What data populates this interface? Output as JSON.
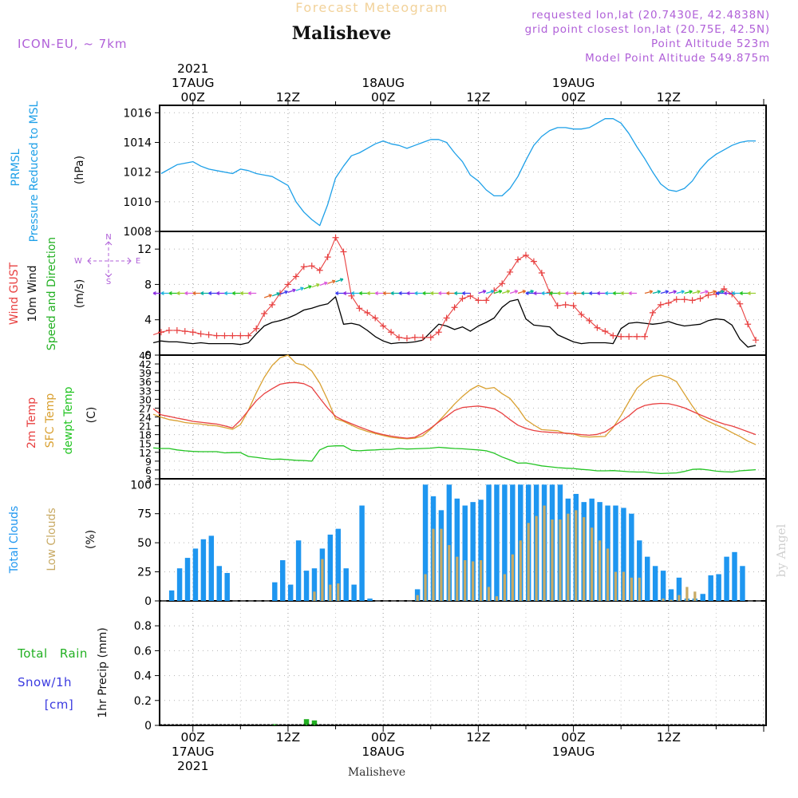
{
  "header": {
    "title": "Forecast Meteogram",
    "location": "Malisheve",
    "model": "ICON-EU, ~ 7km",
    "requested": "requested lon,lat (20.7430E, 42.4838N)",
    "gridpoint": "grid point closest lon,lat (20.75E, 42.5N)",
    "altitude": "Point Altitude 523m",
    "model_altitude": "Model Point Altitude 549.875m",
    "footer": "Malisheve",
    "watermark": "by Angel"
  },
  "time_axis": {
    "top_labels": [
      {
        "t": 0,
        "lines": [
          "2021",
          "17AUG",
          "00Z"
        ]
      },
      {
        "t": 12,
        "lines": [
          "12Z"
        ]
      },
      {
        "t": 24,
        "lines": [
          "18AUG",
          "00Z"
        ]
      },
      {
        "t": 36,
        "lines": [
          "12Z"
        ]
      },
      {
        "t": 48,
        "lines": [
          "19AUG",
          "00Z"
        ]
      },
      {
        "t": 60,
        "lines": [
          "12Z"
        ]
      }
    ],
    "bottom_labels": [
      {
        "t": 0,
        "lines": [
          "00Z",
          "17AUG",
          "2021"
        ]
      },
      {
        "t": 12,
        "lines": [
          "12Z"
        ]
      },
      {
        "t": 24,
        "lines": [
          "00Z",
          "18AUG"
        ]
      },
      {
        "t": 36,
        "lines": [
          "12Z"
        ]
      },
      {
        "t": 48,
        "lines": [
          "00Z",
          "19AUG"
        ]
      },
      {
        "t": 60,
        "lines": [
          "12Z"
        ]
      }
    ]
  },
  "panels": {
    "pressure": {
      "label": "PRMSL",
      "label2": "Pressure Reduced to MSL",
      "unit": "(hPa)"
    },
    "wind": {
      "label_gust": "Wind GUST",
      "label_wind": "10m Wind",
      "label_dir": "Speed and Direction",
      "unit": "(m/s)",
      "compass": [
        "N",
        "S",
        "W",
        "E"
      ]
    },
    "temp": {
      "label_2m": "2m Temp",
      "label_sfc": "SFC Temp",
      "label_dew": "dewpt Temp",
      "unit": "(C)"
    },
    "clouds": {
      "label_total": "Total Clouds",
      "label_low": "Low Clouds",
      "unit": "(%)"
    },
    "precip": {
      "label_rain": "Total Rain",
      "label_snow": "Snow/1h",
      "label_snow_unit": "[cm]",
      "label_axis": "1hr Precip (mm)"
    }
  },
  "colors": {
    "pressure": "#1ea0e8",
    "gust": "#e84040",
    "wind": "#000000",
    "temp2m": "#e84040",
    "sfc": "#d9a030",
    "dewpt": "#22c422",
    "total_clouds": "#1e96f0",
    "low_clouds": "#c8aa64",
    "rain": "#22b022",
    "snow": "#3a3ae0",
    "purple": "#b060d8",
    "title_gold": "#f2d29a",
    "watermark": "#d0d0d0"
  },
  "chart_data": [
    {
      "type": "line",
      "title": "PRMSL",
      "ylabel": "(hPa)",
      "ylim": [
        1008,
        1016.5
      ],
      "yticks": [
        1008,
        1010,
        1012,
        1014,
        1016
      ],
      "x": [
        -4,
        -2,
        -1,
        0,
        1,
        2,
        3,
        5,
        6,
        7,
        8,
        9,
        10,
        11,
        12,
        13,
        14,
        15,
        16,
        17,
        18,
        19,
        20,
        21,
        22,
        23,
        24,
        25,
        26,
        27,
        28,
        29,
        30,
        31,
        32,
        33,
        34,
        35,
        36,
        37,
        38,
        39,
        40,
        41,
        42,
        43,
        44,
        45,
        46,
        47,
        48,
        49,
        50,
        51,
        52,
        53,
        54,
        55,
        56,
        57,
        58,
        59,
        60,
        61,
        62,
        63,
        64,
        65,
        66,
        67,
        68,
        69,
        70,
        71
      ],
      "series": [
        {
          "name": "PRMSL",
          "values": [
            1011.9,
            1012.5,
            1012.6,
            1012.7,
            1012.4,
            1012.2,
            1012.1,
            1011.9,
            1012.2,
            1012.1,
            1011.9,
            1011.8,
            1011.7,
            1011.4,
            1011.1,
            1010.0,
            1009.3,
            1008.8,
            1008.4,
            1009.8,
            1011.6,
            1012.4,
            1013.1,
            1013.3,
            1013.6,
            1013.9,
            1014.1,
            1013.9,
            1013.8,
            1013.6,
            1013.8,
            1014.0,
            1014.2,
            1014.2,
            1014.0,
            1013.3,
            1012.7,
            1011.8,
            1011.4,
            1010.8,
            1010.4,
            1010.4,
            1010.9,
            1011.7,
            1012.8,
            1013.8,
            1014.4,
            1014.8,
            1015.0,
            1015.0,
            1014.9,
            1014.9,
            1015.0,
            1015.3,
            1015.6,
            1015.6,
            1015.3,
            1014.6,
            1013.7,
            1012.9,
            1012.0,
            1011.2,
            1010.8,
            1010.7,
            1010.9,
            1011.4,
            1012.2,
            1012.8,
            1013.2,
            1013.5,
            1013.8,
            1014.0,
            1014.1,
            1014.1
          ]
        }
      ]
    },
    {
      "type": "line",
      "title": "Wind",
      "ylabel": "(m/s)",
      "ylim": [
        0,
        14
      ],
      "yticks": [
        0,
        4,
        8,
        12
      ],
      "x": [
        -5,
        -4,
        -3,
        -2,
        -1,
        0,
        1,
        2,
        3,
        4,
        5,
        6,
        7,
        8,
        9,
        10,
        11,
        12,
        13,
        14,
        15,
        16,
        17,
        18,
        19,
        20,
        21,
        22,
        23,
        24,
        25,
        26,
        27,
        28,
        29,
        30,
        31,
        32,
        33,
        34,
        35,
        36,
        37,
        38,
        39,
        40,
        41,
        42,
        43,
        44,
        45,
        46,
        47,
        48,
        49,
        50,
        51,
        52,
        53,
        54,
        55,
        56,
        57,
        58,
        59,
        60,
        61,
        62,
        63,
        64,
        65,
        66,
        67,
        68,
        69,
        70,
        71
      ],
      "series": [
        {
          "name": "Wind GUST",
          "values": [
            2.3,
            2.6,
            2.8,
            2.8,
            2.7,
            2.6,
            2.4,
            2.3,
            2.2,
            2.2,
            2.2,
            2.2,
            2.2,
            3.0,
            4.7,
            5.7,
            7.0,
            8.0,
            8.9,
            10.0,
            10.1,
            9.6,
            11.1,
            13.3,
            11.7,
            6.7,
            5.3,
            4.8,
            4.2,
            3.3,
            2.6,
            2.0,
            1.9,
            2.0,
            2.0,
            2.0,
            2.6,
            4.2,
            5.4,
            6.4,
            6.7,
            6.2,
            6.2,
            7.3,
            8.1,
            9.4,
            10.8,
            11.3,
            10.6,
            9.3,
            7.1,
            5.6,
            5.7,
            5.6,
            4.6,
            3.9,
            3.1,
            2.7,
            2.2,
            2.1,
            2.1,
            2.1,
            2.1,
            4.8,
            5.7,
            5.9,
            6.3,
            6.3,
            6.2,
            6.4,
            6.8,
            6.9,
            7.5,
            6.9,
            5.8,
            3.5,
            1.7
          ]
        },
        {
          "name": "10m Wind",
          "values": [
            1.4,
            1.6,
            1.5,
            1.5,
            1.4,
            1.3,
            1.4,
            1.3,
            1.3,
            1.3,
            1.3,
            1.2,
            1.4,
            2.4,
            3.3,
            3.7,
            3.9,
            4.2,
            4.6,
            5.1,
            5.3,
            5.6,
            5.8,
            6.6,
            3.5,
            3.6,
            3.4,
            2.8,
            2.1,
            1.6,
            1.3,
            1.4,
            1.4,
            1.5,
            1.7,
            2.6,
            3.5,
            3.3,
            2.9,
            3.2,
            2.7,
            3.3,
            3.7,
            4.2,
            5.4,
            6.1,
            6.3,
            4.1,
            3.4,
            3.3,
            3.2,
            2.3,
            1.9,
            1.5,
            1.3,
            1.4,
            1.4,
            1.4,
            1.3,
            3.0,
            3.6,
            3.7,
            3.6,
            3.5,
            3.6,
            3.8,
            3.5,
            3.3,
            3.4,
            3.5,
            3.9,
            4.1,
            4.0,
            3.4,
            1.8,
            0.9,
            1.1
          ]
        }
      ]
    },
    {
      "type": "line",
      "title": "Temperatures",
      "ylabel": "(C)",
      "ylim": [
        3,
        45
      ],
      "yticks": [
        3,
        6,
        9,
        12,
        15,
        18,
        21,
        24,
        27,
        30,
        33,
        36,
        39,
        42,
        45
      ],
      "x": [
        -5,
        -4,
        -3,
        -2,
        -1,
        0,
        1,
        2,
        3,
        4,
        5,
        6,
        7,
        8,
        9,
        10,
        11,
        12,
        13,
        14,
        15,
        16,
        17,
        18,
        19,
        20,
        21,
        22,
        23,
        24,
        25,
        26,
        27,
        28,
        29,
        30,
        31,
        32,
        33,
        34,
        35,
        36,
        37,
        38,
        39,
        40,
        41,
        42,
        43,
        44,
        45,
        46,
        47,
        48,
        49,
        50,
        51,
        52,
        53,
        54,
        55,
        56,
        57,
        58,
        59,
        60,
        61,
        62,
        63,
        64,
        65,
        66,
        67,
        68,
        69,
        70,
        71
      ],
      "series": [
        {
          "name": "2m Temp",
          "values": [
            26.8,
            24.7,
            24.2,
            23.6,
            23.1,
            22.5,
            22.2,
            21.9,
            21.6,
            21.0,
            20.3,
            22.9,
            26.2,
            29.5,
            31.9,
            33.6,
            35.1,
            35.6,
            35.7,
            35.3,
            34.0,
            30.4,
            27.0,
            24.2,
            22.8,
            21.7,
            20.6,
            19.6,
            18.7,
            18.0,
            17.5,
            17.1,
            16.8,
            17.1,
            18.5,
            20.2,
            22.3,
            24.2,
            26.2,
            27.2,
            27.5,
            27.7,
            27.3,
            26.8,
            25.2,
            23.1,
            21.2,
            20.1,
            19.4,
            19.0,
            18.8,
            18.6,
            18.5,
            18.3,
            18.0,
            17.8,
            18.1,
            18.9,
            20.7,
            22.5,
            24.4,
            26.7,
            27.9,
            28.4,
            28.6,
            28.5,
            27.9,
            27.1,
            25.9,
            24.7,
            23.6,
            22.5,
            21.6,
            20.9,
            20.0,
            19.0,
            18.0
          ]
        },
        {
          "name": "SFC Temp",
          "values": [
            24.9,
            23.9,
            23.1,
            22.7,
            22.1,
            21.8,
            21.6,
            21.2,
            21.0,
            20.4,
            19.8,
            21.4,
            26.3,
            32.2,
            37.4,
            41.5,
            44.1,
            45.0,
            42.2,
            41.6,
            39.6,
            35.5,
            29.8,
            23.4,
            22.5,
            21.2,
            20.0,
            19.1,
            18.4,
            17.7,
            17.1,
            16.8,
            16.6,
            16.8,
            17.6,
            19.9,
            22.5,
            25.4,
            28.4,
            31.0,
            33.2,
            34.7,
            33.6,
            34.0,
            31.9,
            30.3,
            27.0,
            23.1,
            21.3,
            19.7,
            19.5,
            19.3,
            18.4,
            18.2,
            17.4,
            17.2,
            17.3,
            17.4,
            20.4,
            24.5,
            29.2,
            33.7,
            36.1,
            37.7,
            38.2,
            37.4,
            36.0,
            31.8,
            27.7,
            24.0,
            22.5,
            21.3,
            20.2,
            18.7,
            17.4,
            15.8,
            14.6
          ]
        },
        {
          "name": "dewpt Temp",
          "values": [
            13.5,
            13.3,
            13.3,
            12.8,
            12.5,
            12.3,
            12.2,
            12.2,
            12.2,
            11.8,
            11.9,
            11.9,
            10.6,
            10.3,
            9.9,
            9.6,
            9.7,
            9.5,
            9.3,
            9.2,
            9.0,
            12.8,
            14.0,
            14.2,
            14.2,
            12.7,
            12.5,
            12.7,
            12.8,
            13.0,
            13.0,
            13.3,
            13.1,
            13.2,
            13.3,
            13.4,
            13.7,
            13.5,
            13.3,
            13.2,
            13.0,
            12.8,
            12.5,
            11.7,
            10.4,
            9.4,
            8.3,
            8.4,
            7.9,
            7.4,
            7.1,
            6.8,
            6.6,
            6.5,
            6.2,
            6.0,
            5.7,
            5.7,
            5.8,
            5.6,
            5.4,
            5.3,
            5.3,
            5.0,
            4.8,
            4.9,
            5.0,
            5.5,
            6.2,
            6.3,
            6.0,
            5.6,
            5.4,
            5.3,
            5.7,
            5.9,
            6.1
          ]
        }
      ]
    },
    {
      "type": "bar",
      "title": "Clouds",
      "ylabel": "(%)",
      "ylim": [
        0,
        105
      ],
      "yticks": [
        0,
        25,
        50,
        75,
        100
      ],
      "x": [
        -5,
        -4,
        -3,
        -2,
        -1,
        0,
        1,
        2,
        3,
        4,
        5,
        6,
        7,
        8,
        9,
        10,
        11,
        12,
        13,
        14,
        15,
        16,
        17,
        18,
        19,
        20,
        21,
        22,
        23,
        24,
        25,
        26,
        27,
        28,
        29,
        30,
        31,
        32,
        33,
        34,
        35,
        36,
        37,
        38,
        39,
        40,
        41,
        42,
        43,
        44,
        45,
        46,
        47,
        48,
        49,
        50,
        51,
        52,
        53,
        54,
        55,
        56,
        57,
        58,
        59,
        60,
        61,
        62,
        63,
        64,
        65,
        66,
        67,
        68,
        69,
        70,
        71
      ],
      "series": [
        {
          "name": "Total Clouds",
          "values": [
            4,
            0,
            9,
            28,
            37,
            45,
            53,
            56,
            30,
            24,
            0,
            0,
            0,
            0,
            0,
            16,
            35,
            14,
            52,
            26,
            28,
            45,
            57,
            62,
            28,
            14,
            82,
            2,
            0,
            0,
            0,
            0,
            0,
            10,
            100,
            90,
            78,
            100,
            88,
            82,
            85,
            87,
            100,
            100,
            100,
            100,
            100,
            100,
            100,
            100,
            100,
            100,
            88,
            92,
            85,
            88,
            85,
            82,
            82,
            80,
            75,
            52,
            38,
            30,
            26,
            10,
            20,
            2,
            2,
            6,
            22,
            23,
            38,
            42,
            30,
            0,
            0
          ]
        },
        {
          "name": "Low Clouds",
          "values": [
            0,
            0,
            0,
            0,
            0,
            0,
            0,
            0,
            0,
            0,
            0,
            0,
            0,
            0,
            0,
            0,
            0,
            0,
            0,
            0,
            8,
            36,
            14,
            15,
            0,
            0,
            0,
            0,
            0,
            0,
            0,
            0,
            0,
            5,
            23,
            62,
            62,
            48,
            38,
            35,
            34,
            35,
            12,
            4,
            23,
            40,
            52,
            67,
            73,
            82,
            70,
            70,
            75,
            78,
            72,
            63,
            52,
            45,
            25,
            25,
            20,
            20,
            0,
            0,
            2,
            1,
            5,
            12,
            8,
            0,
            0,
            0,
            0,
            0,
            0,
            0,
            0
          ]
        }
      ]
    },
    {
      "type": "bar",
      "title": "Precipitation",
      "ylabel": "1hr Precip (mm)",
      "ylim": [
        0,
        1.0
      ],
      "yticks": [
        0,
        0.2,
        0.4,
        0.6,
        0.8
      ],
      "x": [
        10,
        14,
        15
      ],
      "series": [
        {
          "name": "Total Rain",
          "values": [
            0.01,
            0.05,
            0.04
          ]
        }
      ]
    }
  ]
}
